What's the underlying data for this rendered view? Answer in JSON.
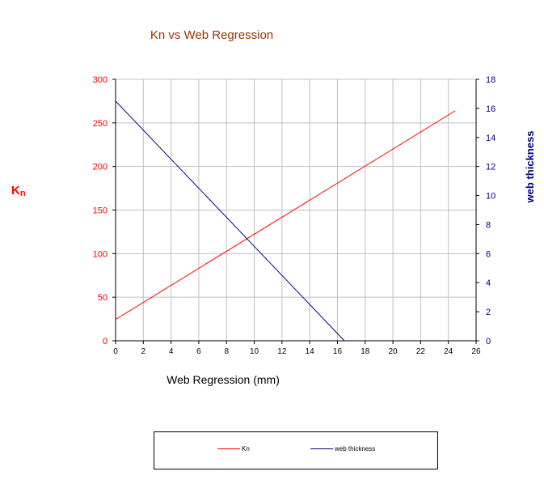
{
  "chart_data": {
    "type": "line",
    "title": "Kn  vs  Web Regression",
    "xlabel": "Web Regression  (mm)",
    "ylabel_left": "Kn",
    "ylabel_right": "web thickness",
    "xlim": [
      0,
      26
    ],
    "ylim_left": [
      0,
      300
    ],
    "ylim_right": [
      0,
      18
    ],
    "x_ticks": [
      "0",
      "2",
      "4",
      "6",
      "8",
      "10",
      "12",
      "14",
      "16",
      "18",
      "20",
      "22",
      "24",
      "26"
    ],
    "y_left_ticks": [
      "0",
      "50",
      "100",
      "150",
      "200",
      "250",
      "300"
    ],
    "y_right_ticks": [
      "0",
      "2",
      "4",
      "6",
      "8",
      "10",
      "12",
      "14",
      "16",
      "18"
    ],
    "grid": true,
    "legend_position": "bottom",
    "series": [
      {
        "name": "Kn",
        "axis": "left",
        "color": "#ff0000",
        "x": [
          0,
          24.5
        ],
        "values": [
          24.5,
          264
        ]
      },
      {
        "name": "web thickness",
        "axis": "right",
        "color": "#000080",
        "x": [
          0,
          16.5
        ],
        "values": [
          16.5,
          0
        ]
      }
    ],
    "colors": {
      "title": "#993300",
      "left_axis": "#ff0000",
      "right_axis": "#000080"
    }
  }
}
